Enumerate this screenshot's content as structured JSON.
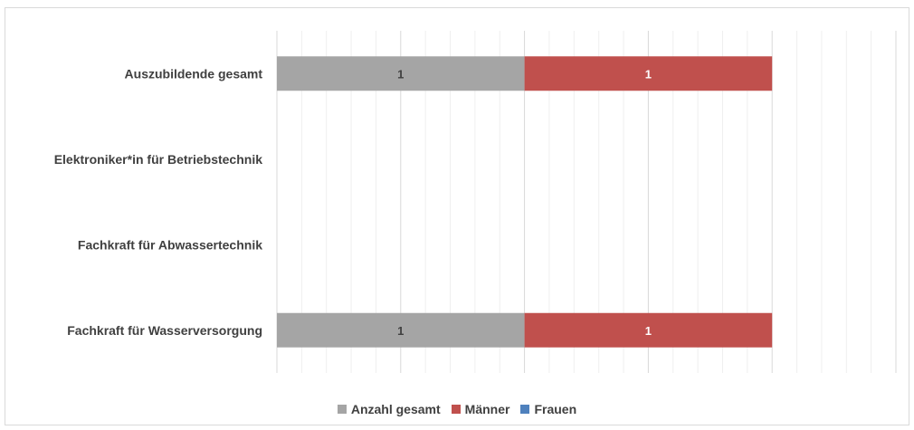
{
  "chart_data": {
    "type": "bar",
    "orientation": "horizontal",
    "stacked": true,
    "categories": [
      "Auszubildende gesamt",
      "Elektroniker*in für Betriebstechnik",
      "Fachkraft für Abwassertechnik",
      "Fachkraft für Wasserversorgung"
    ],
    "series": [
      {
        "name": "Anzahl gesamt",
        "color": "#a5a5a5",
        "values": [
          1,
          0,
          0,
          1
        ],
        "labels": [
          "1",
          "",
          "",
          "1"
        ],
        "label_color": "#404040"
      },
      {
        "name": "Männer",
        "color": "#c0504d",
        "values": [
          1,
          0,
          0,
          1
        ],
        "labels": [
          "1",
          "",
          "",
          "1"
        ],
        "label_color": "#ffffff"
      },
      {
        "name": "Frauen",
        "color": "#4f81bd",
        "values": [
          0,
          0,
          0,
          0
        ],
        "labels": [
          "",
          "",
          "",
          ""
        ],
        "label_color": "#ffffff"
      }
    ],
    "xlim": [
      0,
      2.5
    ],
    "grid": true,
    "legend_position": "bottom",
    "title": "",
    "xlabel": "",
    "ylabel": ""
  }
}
